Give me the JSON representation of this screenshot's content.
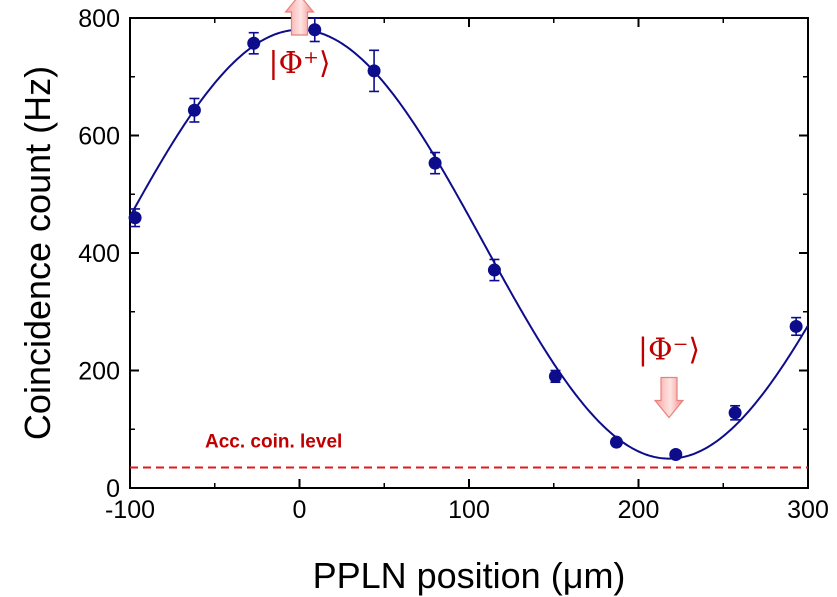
{
  "chart_data": {
    "type": "scatter",
    "xlabel": "PPLN position (μm)",
    "ylabel": "Coincidence count (Hz)",
    "xlim": [
      -100,
      300
    ],
    "ylim": [
      0,
      800
    ],
    "xticks": [
      -100,
      0,
      100,
      200,
      300
    ],
    "yticks": [
      0,
      200,
      400,
      600,
      800
    ],
    "grid": false,
    "series": [
      {
        "kind": "points-with-error-bars",
        "x": [
          -97,
          -62,
          -27,
          9,
          44,
          80,
          115,
          151,
          187,
          222,
          257,
          293
        ],
        "y": [
          460,
          643,
          757,
          780,
          710,
          553,
          371,
          190,
          78,
          57,
          128,
          275
        ],
        "yerr": [
          15,
          20,
          18,
          20,
          35,
          18,
          18,
          10,
          6,
          6,
          12,
          15
        ],
        "color": "#0d0d8c"
      },
      {
        "kind": "fit-curve",
        "model": "cosine",
        "offset": 415,
        "amplitude": 365,
        "period_um": 436,
        "peak_at_um": 0,
        "color": "#0d0d8c"
      }
    ],
    "reference_line": {
      "label": "Acc. coin. level",
      "y": 35,
      "style": "dashed",
      "color": "#e31a1c"
    },
    "annotations": [
      {
        "label": "|Φ⁺⟩",
        "arrow": "up",
        "x": 0,
        "y": 720,
        "color": "#c00000"
      },
      {
        "label": "|Φ⁻⟩",
        "arrow": "down",
        "x": 218,
        "y": 120,
        "color": "#c00000"
      }
    ]
  }
}
